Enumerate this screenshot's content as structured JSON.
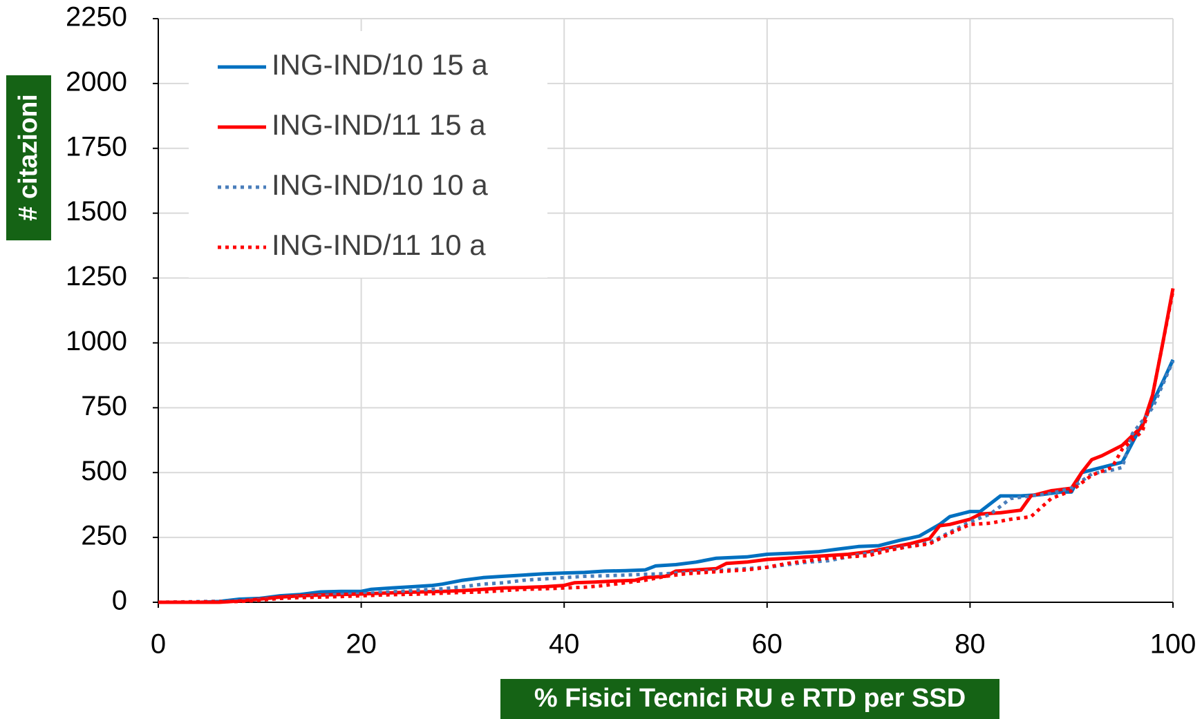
{
  "chart_data": {
    "type": "line",
    "xlabel": "% Fisici Tecnici RU e RTD per SSD",
    "ylabel": "# citazioni",
    "xlim": [
      0,
      100
    ],
    "xticks": [
      0,
      20,
      40,
      60,
      80,
      100
    ],
    "ylim": [
      0,
      2250
    ],
    "yticks": [
      0,
      250,
      500,
      750,
      1000,
      1250,
      1500,
      1750,
      2000,
      2250
    ],
    "grid": true,
    "legend": "upper left",
    "series": [
      {
        "name": "ING-IND/10 15 a",
        "color": "#0070c0",
        "style": "solid",
        "x": [
          0,
          2,
          4,
          6,
          8,
          10,
          12,
          14,
          16,
          18,
          20,
          21,
          23,
          25,
          27,
          28,
          30,
          32,
          34,
          36,
          38,
          40,
          42,
          44,
          46,
          48,
          49,
          51,
          53,
          55,
          58,
          60,
          63,
          65,
          67,
          69,
          71,
          73,
          75,
          77,
          78,
          80,
          81,
          83,
          85,
          87,
          89,
          90,
          91,
          93,
          95,
          97,
          99,
          100
        ],
        "values": [
          0,
          0,
          0,
          3,
          12,
          15,
          25,
          30,
          40,
          42,
          42,
          50,
          55,
          60,
          65,
          70,
          85,
          95,
          100,
          105,
          110,
          113,
          115,
          120,
          122,
          125,
          140,
          145,
          155,
          170,
          175,
          185,
          190,
          195,
          205,
          215,
          218,
          238,
          255,
          300,
          330,
          350,
          350,
          410,
          410,
          415,
          425,
          425,
          500,
          520,
          540,
          690,
          850,
          935
        ]
      },
      {
        "name": "ING-IND/11 15 a",
        "color": "#ff0000",
        "style": "solid",
        "x": [
          0,
          6,
          8,
          10,
          12,
          14,
          16,
          18,
          20,
          22,
          24,
          26,
          28,
          30,
          32,
          34,
          36,
          38,
          40,
          41,
          43,
          45,
          47,
          48,
          50,
          51,
          53,
          55,
          56,
          58,
          60,
          62,
          64,
          66,
          68,
          70,
          72,
          74,
          76,
          77,
          78,
          80,
          81,
          83,
          85,
          86,
          88,
          90,
          91,
          92,
          93,
          95,
          97,
          98,
          99,
          100
        ],
        "values": [
          0,
          0,
          5,
          12,
          20,
          25,
          28,
          30,
          32,
          35,
          38,
          40,
          42,
          45,
          50,
          55,
          57,
          60,
          65,
          75,
          78,
          82,
          85,
          95,
          100,
          120,
          125,
          130,
          150,
          155,
          165,
          170,
          175,
          180,
          185,
          195,
          210,
          225,
          245,
          295,
          300,
          320,
          340,
          345,
          355,
          410,
          430,
          440,
          500,
          550,
          565,
          605,
          680,
          800,
          1000,
          1210
        ]
      },
      {
        "name": "ING-IND/10 10 a",
        "color": "#4a7ebb",
        "style": "dotted",
        "x": [
          0,
          8,
          10,
          12,
          14,
          16,
          18,
          20,
          22,
          24,
          26,
          28,
          30,
          32,
          34,
          36,
          38,
          40,
          42,
          44,
          46,
          48,
          50,
          52,
          54,
          56,
          58,
          60,
          62,
          64,
          66,
          68,
          70,
          72,
          74,
          76,
          77,
          78,
          80,
          82,
          84,
          86,
          88,
          90,
          92,
          94,
          95,
          96,
          98,
          100
        ],
        "values": [
          0,
          5,
          10,
          15,
          20,
          25,
          30,
          32,
          38,
          42,
          48,
          52,
          60,
          70,
          75,
          85,
          90,
          95,
          100,
          102,
          105,
          108,
          110,
          115,
          120,
          125,
          130,
          135,
          145,
          155,
          160,
          175,
          190,
          205,
          215,
          230,
          250,
          270,
          310,
          340,
          400,
          410,
          420,
          440,
          495,
          510,
          520,
          650,
          750,
          930
        ]
      },
      {
        "name": "ING-IND/11 10 a",
        "color": "#ff0000",
        "style": "dotted",
        "x": [
          0,
          8,
          10,
          12,
          14,
          16,
          18,
          20,
          22,
          24,
          26,
          28,
          30,
          32,
          34,
          36,
          38,
          40,
          42,
          44,
          46,
          48,
          50,
          52,
          54,
          56,
          58,
          60,
          62,
          64,
          66,
          68,
          70,
          72,
          74,
          76,
          78,
          80,
          82,
          84,
          86,
          88,
          90,
          92,
          94,
          95,
          97,
          98,
          100
        ],
        "values": [
          0,
          3,
          8,
          15,
          18,
          20,
          22,
          25,
          28,
          30,
          32,
          35,
          38,
          40,
          45,
          50,
          52,
          55,
          58,
          65,
          75,
          85,
          100,
          110,
          115,
          120,
          125,
          135,
          150,
          160,
          170,
          175,
          180,
          200,
          215,
          225,
          265,
          300,
          305,
          320,
          330,
          400,
          430,
          490,
          520,
          590,
          660,
          800,
          1200
        ]
      }
    ]
  }
}
